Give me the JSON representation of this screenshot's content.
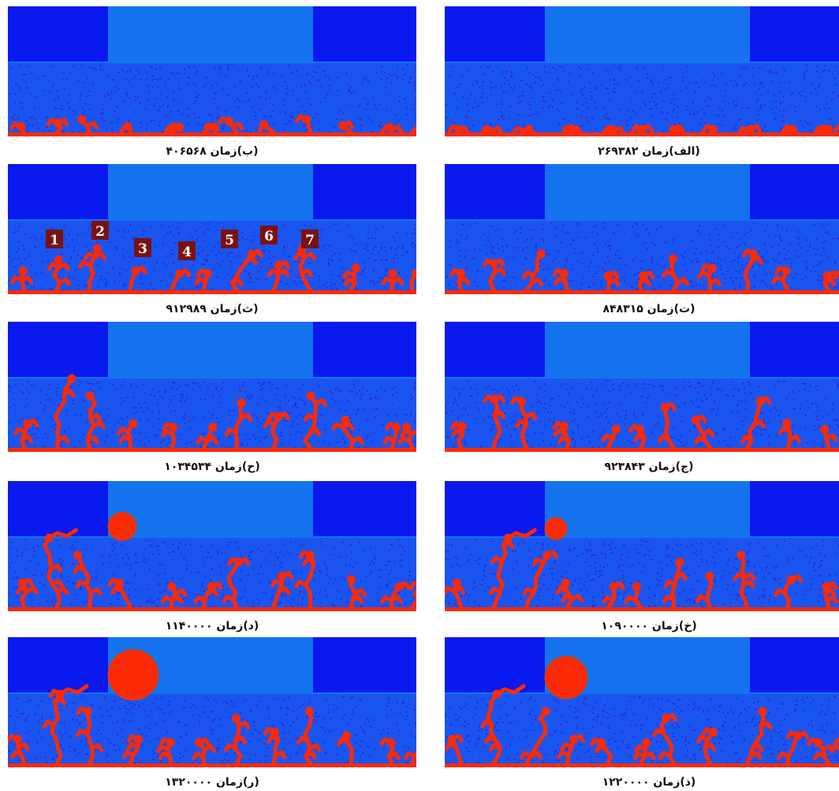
{
  "colors": {
    "block": "#0a19ee",
    "channel": "#1573ef",
    "porous": "#1a55f0",
    "grain": "#2a2ad6",
    "liquid": "#fb2a06",
    "marker_bg": "#7a1111",
    "marker_text": "#ffffff"
  },
  "panels": [
    {
      "id": "b",
      "caption": "(ب)زمان ۴۰۶۵۶۸",
      "stage": 1,
      "growth": 0.25,
      "bubble": 0
    },
    {
      "id": "a",
      "caption": "(الف)زمان ۲۶۹۳۸۲",
      "stage": 0,
      "growth": 0.06,
      "bubble": 0
    },
    {
      "id": "th",
      "caption": "(ث)زمان ۹۱۲۹۸۹",
      "stage": 2,
      "growth": 0.8,
      "bubble": 0,
      "markers": [
        "1",
        "2",
        "3",
        "4",
        "5",
        "6",
        "7"
      ]
    },
    {
      "id": "t",
      "caption": "(ت)زمان ۸۴۸۳۱۵",
      "stage": 2,
      "growth": 0.7,
      "bubble": 0
    },
    {
      "id": "h",
      "caption": "(ح)زمان ۱۰۳۴۵۳۴",
      "stage": 4,
      "growth": 1.0,
      "bubble": 0
    },
    {
      "id": "j",
      "caption": "(ج)زمان ۹۲۳۸۴۳",
      "stage": 3,
      "growth": 0.9,
      "bubble": 0
    },
    {
      "id": "d",
      "caption": "(د)زمان ۱۱۴۰۰۰۰",
      "stage": 5,
      "growth": 1.0,
      "bubble": 18
    },
    {
      "id": "kh",
      "caption": "(خ)زمان ۱۰۹۰۰۰۰",
      "stage": 5,
      "growth": 1.0,
      "bubble": 14
    },
    {
      "id": "r",
      "caption": "(ر)زمان ۱۳۲۰۰۰۰",
      "stage": 5,
      "growth": 1.0,
      "bubble": 32
    },
    {
      "id": "z",
      "caption": "(ذ)زمان ۱۲۲۰۰۰۰",
      "stage": 5,
      "growth": 1.0,
      "bubble": 27
    }
  ]
}
